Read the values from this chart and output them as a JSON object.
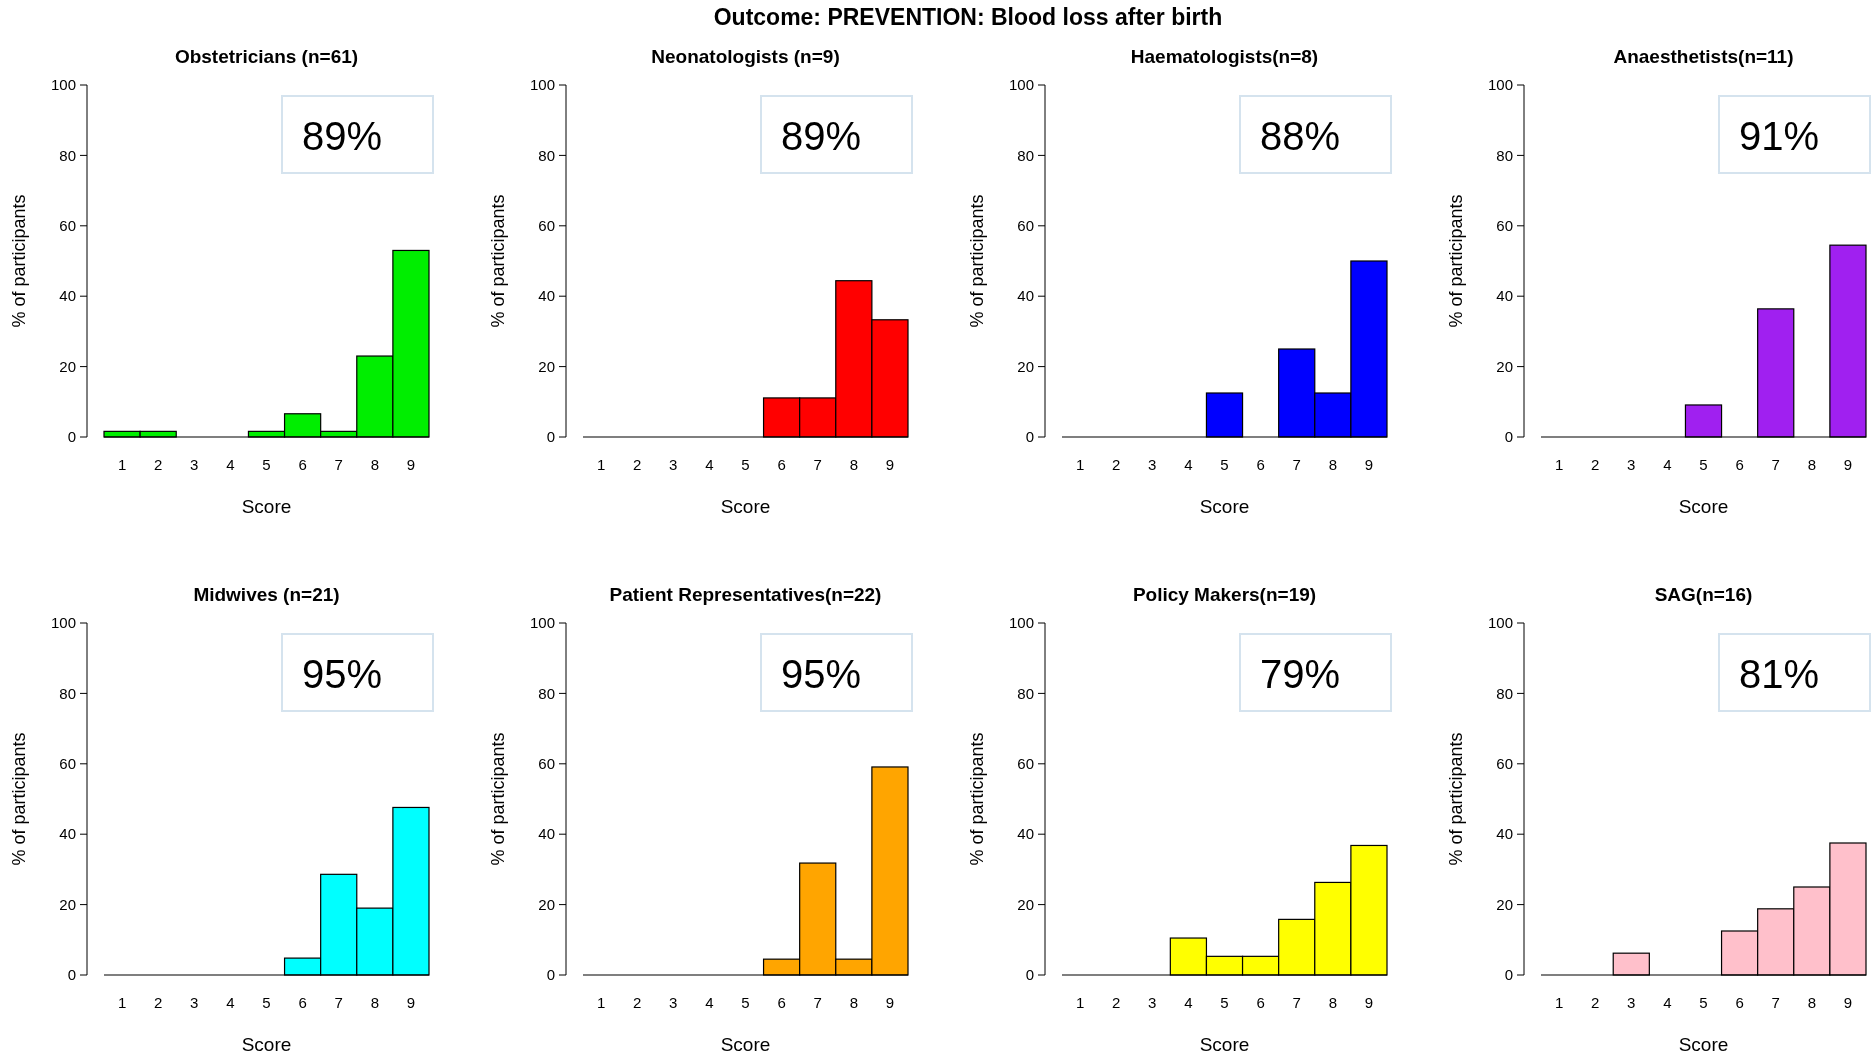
{
  "chart_data": [
    {
      "type": "histogram",
      "title": "Obstetricians (n=61)",
      "xlabel": "Score",
      "ylabel": "% of participants",
      "bins": [
        0.5,
        1.5,
        2.5,
        3.5,
        4.5,
        5.5,
        6.5,
        7.5,
        8.5,
        9.5
      ],
      "values": [
        1.6,
        1.6,
        0,
        0,
        1.6,
        6.6,
        1.6,
        23,
        53
      ],
      "color": "#00ee00",
      "xlim": [
        0.5,
        9.5
      ],
      "xticks": [
        1,
        2,
        3,
        4,
        5,
        6,
        7,
        8,
        9
      ],
      "ylim": [
        0,
        100
      ],
      "yticks": [
        0,
        20,
        40,
        60,
        80,
        100
      ],
      "annotations": [
        "89%",
        "Outcome: PREVENTION: Blood loss after birth"
      ]
    },
    {
      "type": "histogram",
      "title": "Neonatologists (n=9)",
      "xlabel": "Score",
      "ylabel": "% of participants",
      "bins": [
        0.5,
        1.5,
        2.5,
        3.5,
        4.5,
        5.5,
        6.5,
        7.5,
        8.5,
        9.5
      ],
      "values": [
        0,
        0,
        0,
        0,
        0,
        11.1,
        11.1,
        44.4,
        33.3
      ],
      "color": "#ff0000",
      "xlim": [
        0.5,
        9.5
      ],
      "xticks": [
        1,
        2,
        3,
        4,
        5,
        6,
        7,
        8,
        9
      ],
      "ylim": [
        0,
        100
      ],
      "yticks": [
        0,
        20,
        40,
        60,
        80,
        100
      ],
      "annotations": [
        "89%"
      ]
    },
    {
      "type": "histogram",
      "title": "Haematologists(n=8)",
      "xlabel": "Score",
      "ylabel": "% of participants",
      "bins": [
        0.5,
        1.5,
        2.5,
        3.5,
        4.5,
        5.5,
        6.5,
        7.5,
        8.5,
        9.5
      ],
      "values": [
        0,
        0,
        0,
        0,
        12.5,
        0,
        25,
        12.5,
        50
      ],
      "color": "#0000ff",
      "xlim": [
        0.5,
        9.5
      ],
      "xticks": [
        1,
        2,
        3,
        4,
        5,
        6,
        7,
        8,
        9
      ],
      "ylim": [
        0,
        100
      ],
      "yticks": [
        0,
        20,
        40,
        60,
        80,
        100
      ],
      "annotations": [
        "88%"
      ]
    },
    {
      "type": "histogram",
      "title": "Anaesthetists(n=11)",
      "xlabel": "Score",
      "ylabel": "% of participants",
      "bins": [
        0.5,
        1.5,
        2.5,
        3.5,
        4.5,
        5.5,
        6.5,
        7.5,
        8.5,
        9.5
      ],
      "values": [
        0,
        0,
        0,
        0,
        9.1,
        0,
        36.4,
        0,
        54.5
      ],
      "color": "#a020f0",
      "xlim": [
        0.5,
        9.5
      ],
      "xticks": [
        1,
        2,
        3,
        4,
        5,
        6,
        7,
        8,
        9
      ],
      "ylim": [
        0,
        100
      ],
      "yticks": [
        0,
        20,
        40,
        60,
        80,
        100
      ],
      "annotations": [
        "91%"
      ]
    },
    {
      "type": "histogram",
      "title": "Midwives (n=21)",
      "xlabel": "Score",
      "ylabel": "% of participants",
      "bins": [
        0.5,
        1.5,
        2.5,
        3.5,
        4.5,
        5.5,
        6.5,
        7.5,
        8.5,
        9.5
      ],
      "values": [
        0,
        0,
        0,
        0,
        0,
        4.8,
        28.6,
        19,
        47.6
      ],
      "color": "#00ffff",
      "xlim": [
        0.5,
        9.5
      ],
      "xticks": [
        1,
        2,
        3,
        4,
        5,
        6,
        7,
        8,
        9
      ],
      "ylim": [
        0,
        100
      ],
      "yticks": [
        0,
        20,
        40,
        60,
        80,
        100
      ],
      "annotations": [
        "95%"
      ]
    },
    {
      "type": "histogram",
      "title": "Patient Representatives(n=22)",
      "xlabel": "Score",
      "ylabel": "% of participants",
      "bins": [
        0.5,
        1.5,
        2.5,
        3.5,
        4.5,
        5.5,
        6.5,
        7.5,
        8.5,
        9.5
      ],
      "values": [
        0,
        0,
        0,
        0,
        0,
        4.5,
        31.8,
        4.5,
        59.1
      ],
      "color": "#ffa500",
      "xlim": [
        0.5,
        9.5
      ],
      "xticks": [
        1,
        2,
        3,
        4,
        5,
        6,
        7,
        8,
        9
      ],
      "ylim": [
        0,
        100
      ],
      "yticks": [
        0,
        20,
        40,
        60,
        80,
        100
      ],
      "annotations": [
        "95%"
      ]
    },
    {
      "type": "histogram",
      "title": "Policy Makers(n=19)",
      "xlabel": "Score",
      "ylabel": "% of participants",
      "bins": [
        0.5,
        1.5,
        2.5,
        3.5,
        4.5,
        5.5,
        6.5,
        7.5,
        8.5,
        9.5
      ],
      "values": [
        0,
        0,
        0,
        10.5,
        5.3,
        5.3,
        15.8,
        26.3,
        36.8
      ],
      "color": "#ffff00",
      "xlim": [
        0.5,
        9.5
      ],
      "xticks": [
        1,
        2,
        3,
        4,
        5,
        6,
        7,
        8,
        9
      ],
      "ylim": [
        0,
        100
      ],
      "yticks": [
        0,
        20,
        40,
        60,
        80,
        100
      ],
      "annotations": [
        "79%"
      ]
    },
    {
      "type": "histogram",
      "title": "SAG(n=16)",
      "xlabel": "Score",
      "ylabel": "% of participants",
      "bins": [
        0.5,
        1.5,
        2.5,
        3.5,
        4.5,
        5.5,
        6.5,
        7.5,
        8.5,
        9.5
      ],
      "values": [
        0,
        0,
        6.2,
        0,
        0,
        12.5,
        18.8,
        25,
        37.5
      ],
      "color": "#ffc0cb",
      "xlim": [
        0.5,
        9.5
      ],
      "xticks": [
        1,
        2,
        3,
        4,
        5,
        6,
        7,
        8,
        9
      ],
      "ylim": [
        0,
        100
      ],
      "yticks": [
        0,
        20,
        40,
        60,
        80,
        100
      ],
      "annotations": [
        "81%"
      ]
    }
  ]
}
